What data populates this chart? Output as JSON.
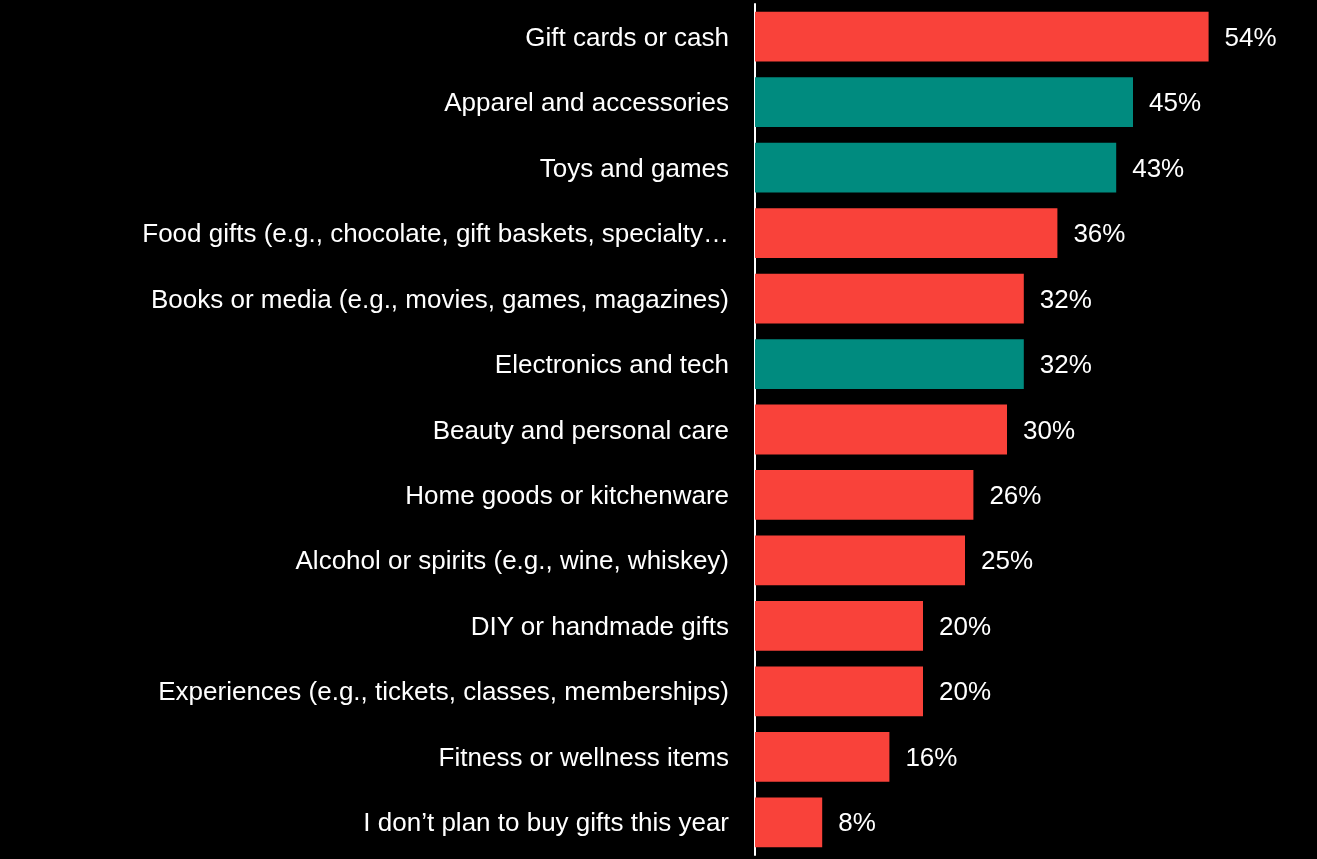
{
  "chart_data": {
    "type": "bar",
    "orientation": "horizontal",
    "categories": [
      "Gift cards or cash",
      "Apparel and accessories",
      "Toys and games",
      "Food gifts (e.g., chocolate, gift baskets, specialty…",
      "Books or media (e.g., movies, games, magazines)",
      "Electronics and tech",
      "Beauty and personal care",
      "Home goods or kitchenware",
      "Alcohol or spirits (e.g., wine, whiskey)",
      "DIY or handmade gifts",
      "Experiences (e.g., tickets, classes, memberships)",
      "Fitness or wellness items",
      "I don’t plan to buy gifts this year"
    ],
    "values": [
      54,
      45,
      43,
      36,
      32,
      32,
      30,
      26,
      25,
      20,
      20,
      16,
      8
    ],
    "value_labels": [
      "54%",
      "45%",
      "43%",
      "36%",
      "32%",
      "32%",
      "30%",
      "26%",
      "25%",
      "20%",
      "20%",
      "16%",
      "8%"
    ],
    "colors": [
      "#f9423a",
      "#008b7f",
      "#008b7f",
      "#f9423a",
      "#f9423a",
      "#008b7f",
      "#f9423a",
      "#f9423a",
      "#f9423a",
      "#f9423a",
      "#f9423a",
      "#f9423a",
      "#f9423a"
    ],
    "grid": false
  }
}
